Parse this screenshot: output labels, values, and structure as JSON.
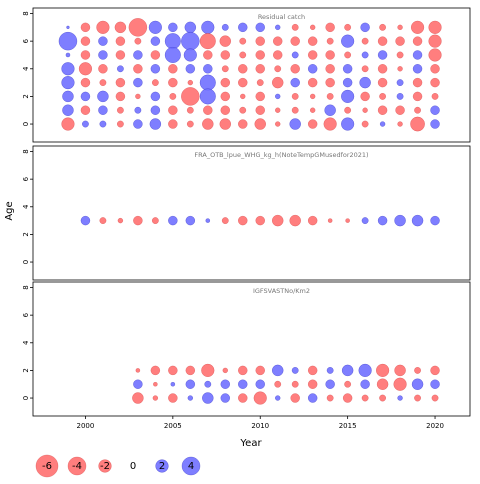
{
  "xlabel": "Year",
  "ylabel": "Age",
  "positive_color": "#7070ff",
  "negative_color": "#ff7070",
  "legend": {
    "values": [
      -6,
      -4,
      -2,
      0,
      2,
      4
    ]
  },
  "chart_data": [
    {
      "type": "bubble",
      "title": "Residual catch",
      "x": [
        1999,
        2000,
        2001,
        2002,
        2003,
        2004,
        2005,
        2006,
        2007,
        2008,
        2009,
        2010,
        2011,
        2012,
        2013,
        2014,
        2015,
        2016,
        2017,
        2018,
        2019,
        2020
      ],
      "ages": [
        7,
        6,
        5,
        4,
        3,
        2,
        1,
        0
      ],
      "values": [
        [
          0.1,
          -1,
          -2,
          -1.5,
          -4,
          2,
          1,
          1.5,
          2,
          0.5,
          1,
          1,
          0.3,
          -0.5,
          -0.3,
          -1,
          -0.5,
          1,
          -0.5,
          -0.3,
          -2,
          -2
        ],
        [
          4,
          -1,
          1,
          -1,
          -0.5,
          1,
          3,
          4,
          -3,
          -1.5,
          -0.5,
          -1,
          -1,
          -1,
          -1,
          -0.5,
          2,
          -0.5,
          -1,
          -1,
          -1,
          -2
        ],
        [
          0.2,
          -1,
          1,
          -1,
          1,
          -1,
          3,
          2,
          -1,
          -1,
          -0.5,
          -1,
          -1,
          0.5,
          -1,
          -1,
          -0.5,
          0.5,
          1,
          -0.5,
          1,
          -2
        ],
        [
          2,
          -2,
          -1,
          0.5,
          -1,
          1,
          -1,
          1,
          1,
          -0.5,
          -1,
          -1,
          -0.5,
          -1,
          1,
          -1,
          1,
          -0.5,
          -1,
          -0.3,
          1,
          -1
        ],
        [
          2,
          -1,
          -0.5,
          -1,
          1,
          -0.5,
          -1,
          -0.3,
          3,
          -1,
          -1,
          -0.5,
          -1.5,
          1,
          -1,
          -1,
          1,
          1.5,
          -1,
          0.5,
          -1,
          -1
        ],
        [
          1.5,
          1,
          1.5,
          -1,
          -0.3,
          1,
          -0.5,
          -4,
          3,
          -1,
          -0.3,
          -1,
          0.3,
          -0.5,
          -0.3,
          -0.5,
          2,
          -1,
          -0.5,
          0.5,
          -1,
          -0.5
        ],
        [
          1.5,
          -1,
          1,
          -0.5,
          0.5,
          1,
          -1,
          -0.5,
          -1,
          -1,
          -0.5,
          -1,
          -0.3,
          -0.5,
          -0.3,
          1.5,
          -0.5,
          -0.3,
          -1,
          -1,
          -0.5,
          1
        ],
        [
          -2,
          0.5,
          0.5,
          -0.5,
          1,
          1.5,
          -1,
          -0.5,
          -1.5,
          -1.5,
          -1,
          -1.5,
          -0.3,
          1.5,
          -1,
          -2,
          2,
          -0.5,
          0.3,
          -0.3,
          -2.5,
          1
        ]
      ],
      "xlim": [
        1997,
        2022
      ],
      "xticks": [
        2000,
        2005,
        2010,
        2015,
        2020
      ],
      "ylim": [
        -1.3,
        8.4
      ],
      "yticks": [
        0,
        2,
        4,
        6,
        8
      ]
    },
    {
      "type": "bubble",
      "title": "FRA_OTB_lpue_WHG_kg_h(NoteTempGMusedfor2021)",
      "x": [
        2000,
        2001,
        2002,
        2003,
        2004,
        2005,
        2006,
        2007,
        2008,
        2009,
        2010,
        2011,
        2012,
        2013,
        2014,
        2015,
        2016,
        2017,
        2018,
        2019,
        2020
      ],
      "ages": [
        3
      ],
      "values": [
        [
          1,
          -0.5,
          -0.3,
          -1,
          -0.5,
          1,
          1,
          0.2,
          -0.5,
          -1,
          -1,
          -1.5,
          -1.5,
          -1,
          -0.2,
          -0.2,
          0.5,
          1,
          1.5,
          1.5,
          1
        ]
      ],
      "xlim": [
        1997,
        2022
      ],
      "xticks": [
        2000,
        2005,
        2010,
        2015,
        2020
      ],
      "ylim": [
        -1.3,
        8.4
      ],
      "yticks": [
        0,
        2,
        4,
        6,
        8
      ]
    },
    {
      "type": "bubble",
      "title": "IGFSVASTNo/Km2",
      "x": [
        2003,
        2004,
        2005,
        2006,
        2007,
        2008,
        2009,
        2010,
        2011,
        2012,
        2013,
        2014,
        2015,
        2016,
        2017,
        2018,
        2019,
        2020
      ],
      "ages": [
        2,
        1,
        0
      ],
      "values": [
        [
          -0.2,
          -1,
          -1,
          -1,
          -2,
          -0.3,
          -1,
          -1,
          1.5,
          0.5,
          -1,
          0.5,
          1.5,
          2,
          -2,
          -1.5,
          -0.5,
          -1
        ],
        [
          1,
          -0.2,
          0.2,
          1,
          0.5,
          1,
          1,
          1,
          -0.5,
          -0.5,
          -1,
          1,
          -0.5,
          1,
          -1.5,
          -2,
          1.5,
          1
        ],
        [
          -1.5,
          -0.3,
          -1,
          0.3,
          1.5,
          1,
          -1,
          -2,
          0.3,
          -1,
          1,
          -0.5,
          -1,
          -0.5,
          -0.5,
          0.3,
          -0.5,
          -0.5
        ]
      ],
      "xlim": [
        1997,
        2022
      ],
      "xticks": [
        2000,
        2005,
        2010,
        2015,
        2020
      ],
      "ylim": [
        -1.3,
        8.4
      ],
      "yticks": [
        0,
        2,
        4,
        6,
        8
      ]
    }
  ]
}
